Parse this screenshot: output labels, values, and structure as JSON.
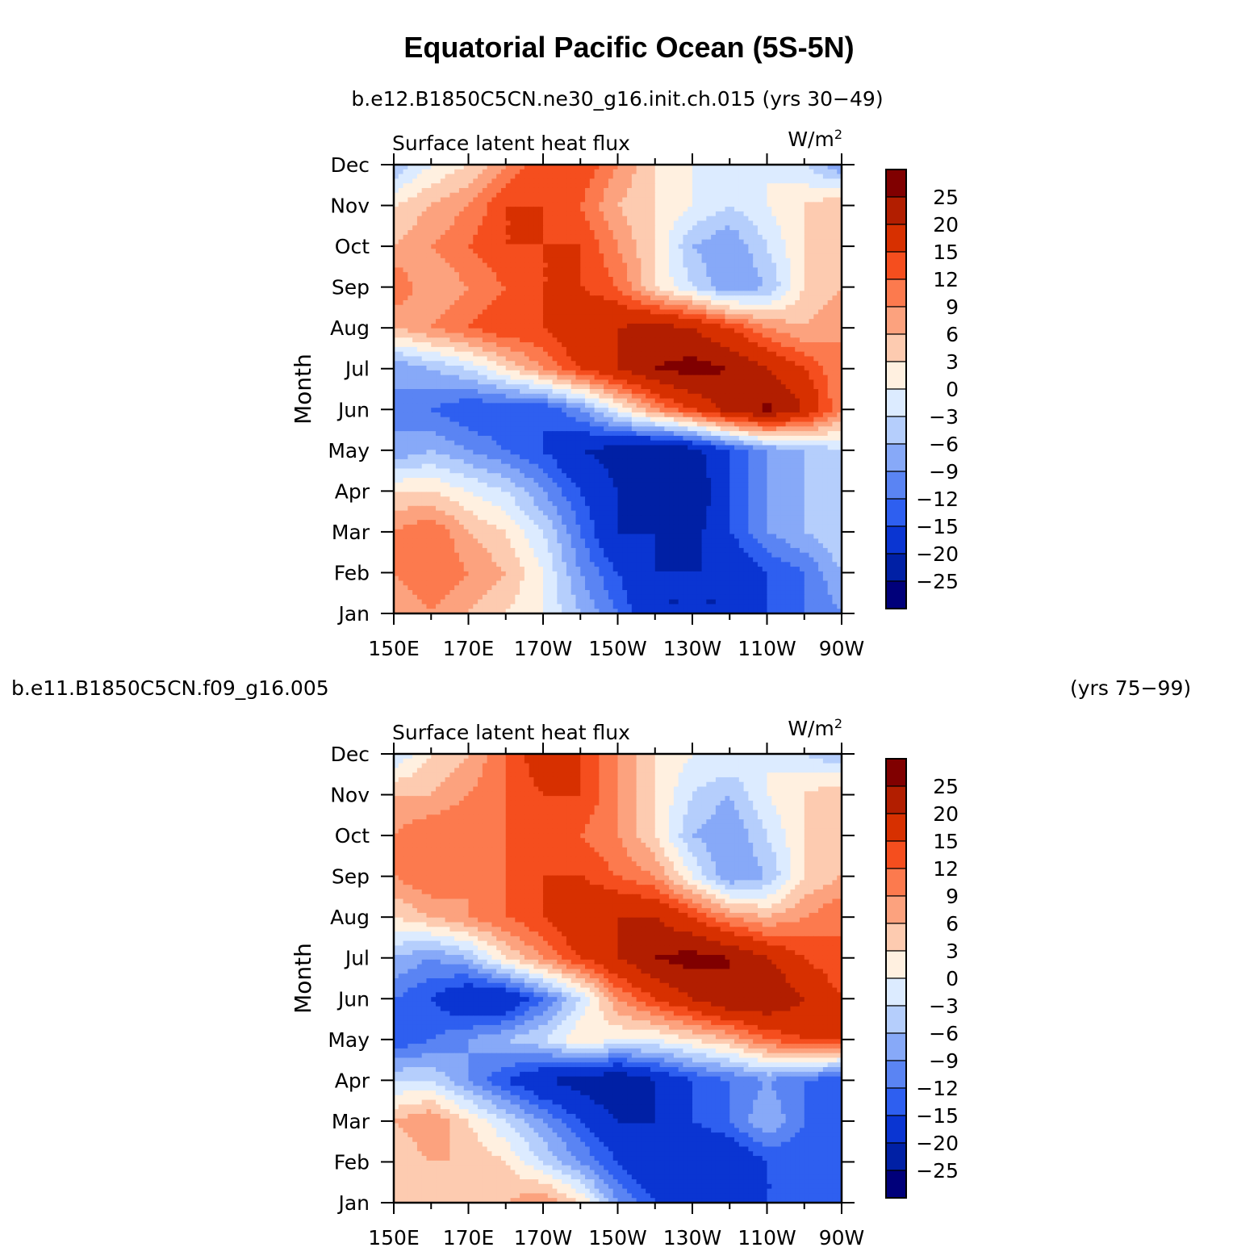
{
  "title": "Equatorial Pacific Ocean (5S-5N)",
  "units_sup": "2",
  "chart_data": [
    {
      "type": "heatmap",
      "case_label": "b.e12.B1850C5CN.ne30_g16.init.ch.015 (yrs 30−49)",
      "case_name": "b.e12.B1850C5CN.ne30_g16.init.ch.015",
      "years": "(yrs 30−49)",
      "variable": "Surface latent heat flux",
      "units": "W/m",
      "ylabel": "Month",
      "x_ticks": [
        "150E",
        "170E",
        "170W",
        "150W",
        "130W",
        "110W",
        "90W"
      ],
      "y_ticks": [
        "Jan",
        "Feb",
        "Mar",
        "Apr",
        "May",
        "Jun",
        "Jul",
        "Aug",
        "Sep",
        "Oct",
        "Nov",
        "Dec"
      ],
      "xlim": [
        150,
        270
      ],
      "ylim": [
        1,
        12
      ],
      "colorbar_labels": [
        "25",
        "20",
        "15",
        "12",
        "9",
        "6",
        "3",
        "0",
        "−3",
        "−6",
        "−9",
        "−12",
        "−15",
        "−20",
        "−25"
      ],
      "colorbar_colors": [
        "#800000",
        "#b21e00",
        "#d73000",
        "#f54e1e",
        "#fc7a4e",
        "#fca27e",
        "#fdcbb0",
        "#fff0e0",
        "#dcebff",
        "#b5cefc",
        "#87a9f8",
        "#5a84f3",
        "#2e5ff0",
        "#0a35d2",
        "#0020a5",
        "#00007a"
      ],
      "grid": {
        "x": [
          150,
          160,
          170,
          180,
          190,
          200,
          210,
          220,
          230,
          240,
          250,
          260,
          270
        ],
        "months": [
          1,
          2,
          3,
          4,
          5,
          6,
          7,
          8,
          9,
          10,
          11,
          12
        ],
        "z": [
          [
            6,
            9,
            6,
            3,
            0,
            -6,
            -12,
            -20,
            -20,
            -20,
            -15,
            -12,
            -9
          ],
          [
            9,
            12,
            9,
            6,
            0,
            -9,
            -15,
            -20,
            -20,
            -20,
            -15,
            -12,
            -6
          ],
          [
            9,
            12,
            6,
            3,
            -3,
            -12,
            -20,
            -20,
            -22,
            -15,
            -9,
            -6,
            -3
          ],
          [
            3,
            3,
            0,
            -3,
            -9,
            -15,
            -20,
            -25,
            -25,
            -15,
            -9,
            -6,
            -3
          ],
          [
            -9,
            -6,
            -9,
            -12,
            -15,
            -20,
            -22,
            -25,
            -22,
            -15,
            -9,
            -6,
            -3
          ],
          [
            -9,
            -12,
            -15,
            -15,
            -15,
            -9,
            0,
            9,
            15,
            22,
            26,
            20,
            9
          ],
          [
            -9,
            -6,
            -3,
            3,
            9,
            15,
            20,
            25,
            27,
            25,
            20,
            15,
            9
          ],
          [
            6,
            9,
            12,
            15,
            15,
            20,
            20,
            22,
            20,
            15,
            9,
            6,
            9
          ],
          [
            12,
            6,
            9,
            12,
            15,
            15,
            12,
            3,
            -3,
            -9,
            -6,
            3,
            6
          ],
          [
            6,
            9,
            12,
            15,
            15,
            15,
            9,
            3,
            -6,
            -9,
            -3,
            3,
            3
          ],
          [
            3,
            6,
            9,
            15,
            15,
            12,
            6,
            3,
            0,
            -3,
            0,
            3,
            6
          ],
          [
            -6,
            0,
            3,
            9,
            15,
            15,
            9,
            3,
            0,
            0,
            0,
            -3,
            -9
          ]
        ]
      }
    },
    {
      "type": "heatmap",
      "case_name": "b.e11.B1850C5CN.f09_g16.005",
      "years": "(yrs 75−99)",
      "variable": "Surface latent heat flux",
      "units": "W/m",
      "ylabel": "Month",
      "x_ticks": [
        "150E",
        "170E",
        "170W",
        "150W",
        "130W",
        "110W",
        "90W"
      ],
      "y_ticks": [
        "Jan",
        "Feb",
        "Mar",
        "Apr",
        "May",
        "Jun",
        "Jul",
        "Aug",
        "Sep",
        "Oct",
        "Nov",
        "Dec"
      ],
      "xlim": [
        150,
        270
      ],
      "ylim": [
        1,
        12
      ],
      "colorbar_labels": [
        "25",
        "20",
        "15",
        "12",
        "9",
        "6",
        "3",
        "0",
        "−3",
        "−6",
        "−9",
        "−12",
        "−15",
        "−20",
        "−25"
      ],
      "colorbar_colors": [
        "#800000",
        "#b21e00",
        "#d73000",
        "#f54e1e",
        "#fc7a4e",
        "#fca27e",
        "#fdcbb0",
        "#fff0e0",
        "#dcebff",
        "#b5cefc",
        "#87a9f8",
        "#5a84f3",
        "#2e5ff0",
        "#0a35d2",
        "#0020a5",
        "#00007a"
      ],
      "grid": {
        "x": [
          150,
          160,
          170,
          180,
          190,
          200,
          210,
          220,
          230,
          240,
          250,
          260,
          270
        ],
        "months": [
          1,
          2,
          3,
          4,
          5,
          6,
          7,
          8,
          9,
          10,
          11,
          12
        ],
        "z": [
          [
            3,
            3,
            3,
            6,
            9,
            3,
            -9,
            -15,
            -20,
            -20,
            -15,
            -15,
            -12
          ],
          [
            3,
            6,
            6,
            3,
            -3,
            -9,
            -15,
            -20,
            -20,
            -20,
            -15,
            -15,
            -12
          ],
          [
            6,
            9,
            3,
            -3,
            -9,
            -15,
            -20,
            -20,
            -15,
            -12,
            -6,
            -12,
            -15
          ],
          [
            -3,
            -3,
            -9,
            -15,
            -20,
            -22,
            -25,
            -20,
            -15,
            -12,
            -9,
            -12,
            -15
          ],
          [
            -15,
            -12,
            -9,
            -6,
            -3,
            3,
            0,
            0,
            3,
            6,
            12,
            15,
            15
          ],
          [
            -12,
            -15,
            -20,
            -20,
            -12,
            -3,
            9,
            15,
            20,
            25,
            25,
            20,
            15
          ],
          [
            -6,
            -9,
            -6,
            3,
            9,
            15,
            20,
            25,
            27,
            25,
            20,
            15,
            12
          ],
          [
            3,
            6,
            9,
            12,
            15,
            20,
            20,
            20,
            15,
            9,
            6,
            9,
            12
          ],
          [
            9,
            12,
            9,
            12,
            15,
            15,
            12,
            9,
            0,
            -9,
            -6,
            3,
            6
          ],
          [
            9,
            12,
            12,
            12,
            12,
            12,
            9,
            3,
            -6,
            -9,
            -3,
            3,
            3
          ],
          [
            6,
            6,
            9,
            12,
            15,
            15,
            9,
            3,
            -3,
            -6,
            0,
            3,
            6
          ],
          [
            -3,
            3,
            6,
            12,
            18,
            15,
            9,
            3,
            0,
            0,
            0,
            -3,
            -6
          ]
        ]
      }
    }
  ]
}
